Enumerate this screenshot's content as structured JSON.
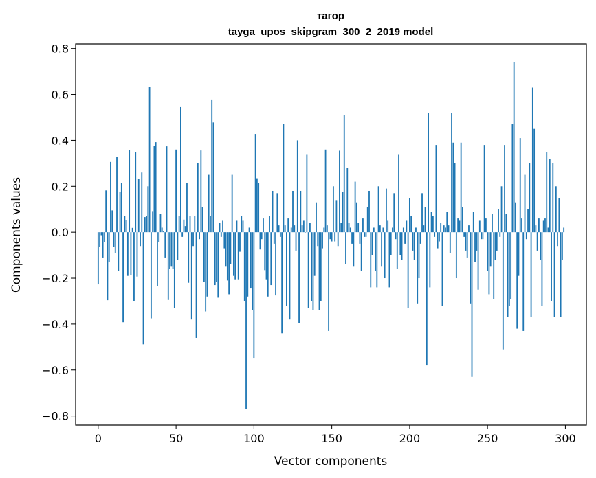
{
  "chart_data": {
    "type": "bar",
    "title": "тагор",
    "subtitle": "tayga_upos_skipgram_300_2_2019 model",
    "xlabel": "Vector components",
    "ylabel": "Components values",
    "xlim": [
      -14.5,
      313.5
    ],
    "ylim": [
      -0.84,
      0.82
    ],
    "xticks": [
      0,
      50,
      100,
      150,
      200,
      250,
      300
    ],
    "yticks": [
      -0.8,
      -0.6,
      -0.4,
      -0.2,
      0.0,
      0.2,
      0.4,
      0.6,
      0.8
    ],
    "ytick_labels": [
      "−0.8",
      "−0.6",
      "−0.4",
      "−0.2",
      "0.0",
      "0.2",
      "0.4",
      "0.6",
      "0.8"
    ],
    "bar_color": "#1f77b4",
    "x": "0..299 (component index)",
    "values": [
      -0.227,
      -0.065,
      -0.013,
      -0.11,
      -0.043,
      0.182,
      -0.296,
      -0.13,
      0.306,
      0.095,
      -0.065,
      -0.09,
      0.327,
      -0.17,
      0.176,
      0.214,
      -0.392,
      0.07,
      0.052,
      -0.19,
      0.359,
      -0.188,
      0.019,
      -0.3,
      0.35,
      -0.193,
      0.233,
      -0.06,
      0.26,
      -0.488,
      0.066,
      0.07,
      0.2,
      0.633,
      -0.375,
      0.092,
      0.376,
      0.392,
      -0.233,
      -0.043,
      0.08,
      0.02,
      0.005,
      -0.11,
      0.374,
      -0.295,
      -0.16,
      -0.15,
      -0.16,
      -0.33,
      0.36,
      -0.12,
      0.07,
      0.545,
      -0.02,
      0.055,
      0.027,
      0.215,
      -0.22,
      0.07,
      -0.38,
      -0.06,
      0.07,
      -0.46,
      0.3,
      -0.03,
      0.356,
      0.11,
      -0.215,
      -0.345,
      -0.28,
      0.25,
      0.07,
      0.578,
      0.478,
      -0.23,
      -0.215,
      -0.285,
      0.04,
      -0.02,
      0.05,
      -0.07,
      -0.15,
      -0.21,
      -0.27,
      -0.14,
      0.25,
      -0.19,
      -0.205,
      0.05,
      -0.205,
      -0.085,
      0.07,
      0.05,
      -0.3,
      -0.77,
      -0.28,
      0.02,
      -0.245,
      -0.34,
      -0.55,
      0.428,
      0.235,
      0.215,
      -0.075,
      -0.03,
      0.06,
      -0.165,
      -0.205,
      -0.28,
      0.07,
      -0.23,
      0.18,
      -0.05,
      -0.275,
      0.17,
      0.03,
      -0.02,
      -0.44,
      0.472,
      0.03,
      -0.32,
      0.06,
      -0.38,
      0.02,
      0.18,
      0.03,
      -0.08,
      0.4,
      -0.395,
      0.18,
      0.03,
      0.05,
      0.0,
      0.34,
      -0.33,
      0.04,
      -0.3,
      -0.34,
      -0.19,
      0.13,
      -0.06,
      -0.34,
      -0.3,
      -0.07,
      0.02,
      0.36,
      0.03,
      -0.43,
      -0.03,
      -0.04,
      0.2,
      -0.04,
      0.14,
      -0.06,
      0.355,
      0.04,
      0.175,
      0.51,
      -0.14,
      0.28,
      0.04,
      0.02,
      -0.05,
      -0.15,
      0.22,
      0.13,
      0.04,
      -0.05,
      -0.17,
      0.06,
      -0.02,
      -0.02,
      0.11,
      0.18,
      -0.24,
      -0.1,
      0.02,
      -0.17,
      -0.24,
      0.2,
      0.03,
      -0.15,
      0.02,
      -0.2,
      0.19,
      0.05,
      -0.24,
      -0.1,
      0.02,
      0.17,
      -0.03,
      -0.16,
      0.34,
      -0.1,
      -0.12,
      0.02,
      -0.05,
      0.05,
      -0.33,
      0.15,
      0.07,
      -0.08,
      -0.12,
      0.02,
      -0.31,
      -0.2,
      -0.05,
      0.17,
      0.03,
      0.11,
      -0.58,
      0.52,
      -0.24,
      0.09,
      0.07,
      -0.02,
      0.38,
      -0.07,
      -0.04,
      0.04,
      -0.32,
      0.03,
      0.02,
      0.09,
      0.03,
      -0.09,
      0.52,
      0.39,
      0.3,
      -0.2,
      0.06,
      0.05,
      0.39,
      0.11,
      -0.02,
      -0.08,
      -0.11,
      0.03,
      -0.31,
      -0.63,
      0.09,
      -0.13,
      -0.08,
      -0.25,
      0.05,
      -0.03,
      -0.03,
      0.38,
      0.06,
      -0.17,
      -0.27,
      -0.15,
      0.08,
      -0.29,
      -0.12,
      -0.08,
      0.1,
      -0.02,
      0.2,
      -0.51,
      0.38,
      0.08,
      -0.37,
      -0.32,
      -0.29,
      0.47,
      0.74,
      0.13,
      -0.42,
      -0.19,
      0.41,
      0.06,
      -0.43,
      0.25,
      -0.03,
      0.1,
      0.3,
      -0.37,
      0.63,
      0.45,
      0.03,
      -0.08,
      0.06,
      -0.12,
      -0.32,
      0.05,
      0.06,
      0.35,
      0.02,
      0.32,
      -0.3,
      0.3,
      -0.37,
      0.2,
      -0.06,
      0.15,
      -0.37,
      -0.12,
      0.02
    ]
  }
}
